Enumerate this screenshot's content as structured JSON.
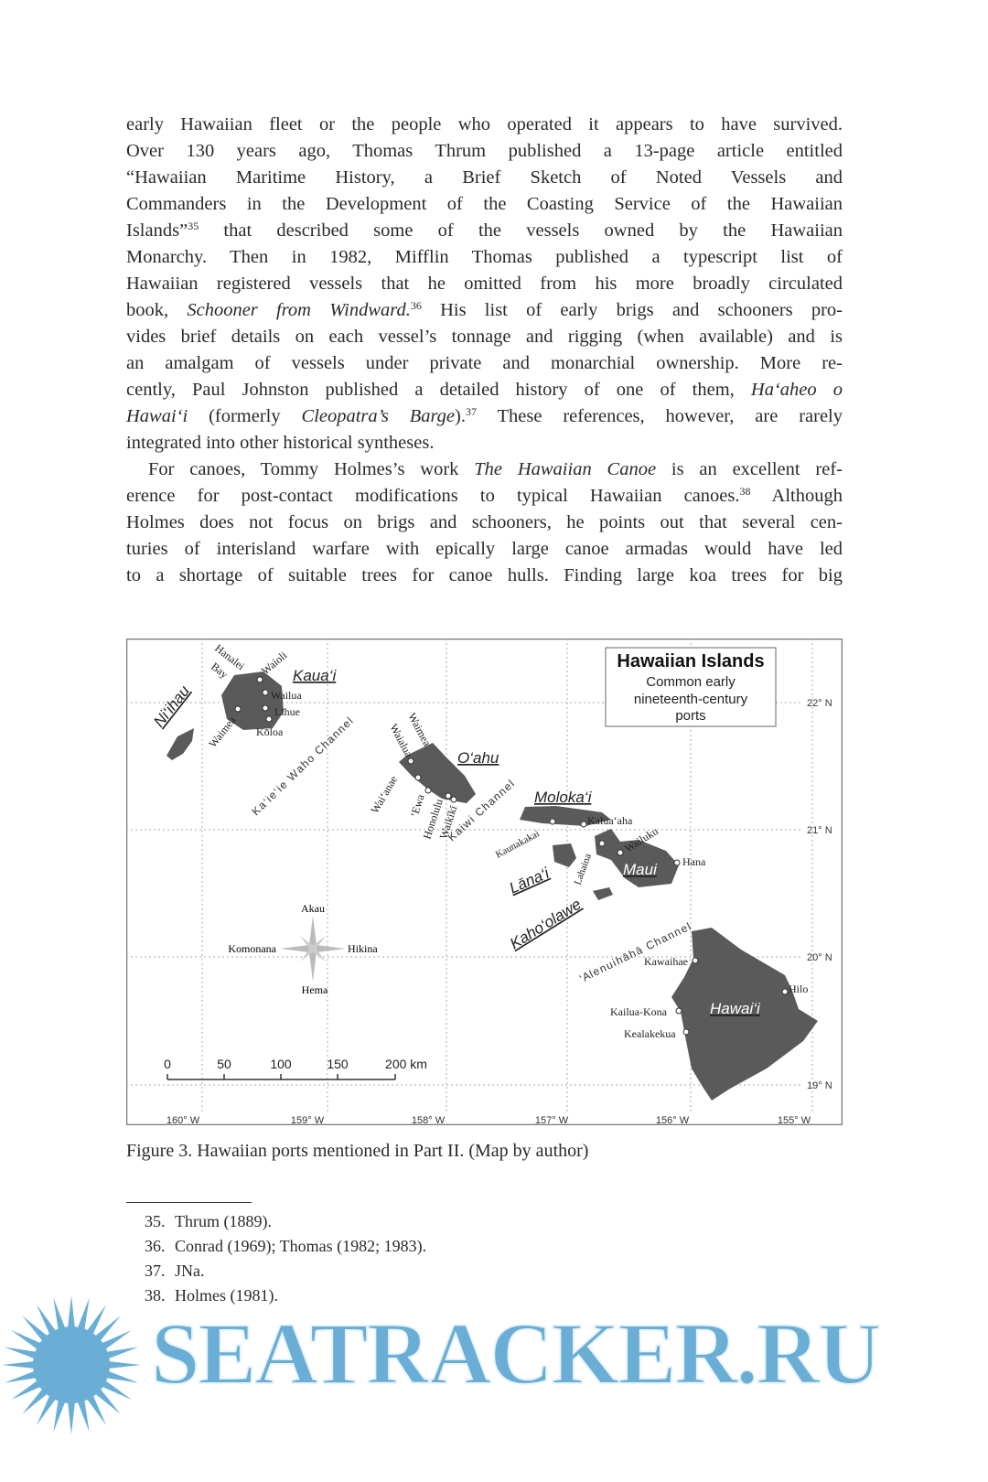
{
  "body_lines": [
    [
      {
        "t": "early Hawaiian fleet or the people who operated it appears to have survived."
      }
    ],
    [
      {
        "t": "Over 130 years ago, Thomas Thrum published a 13-page article entitled"
      }
    ],
    [
      {
        "t": "“Hawaiian Maritime History, a Brief Sketch of Noted Vessels and"
      }
    ],
    [
      {
        "t": "Commanders in the Development of the Coasting Service of the Hawaiian"
      }
    ],
    [
      {
        "t": "Islands”"
      },
      {
        "t": "35",
        "sup": true
      },
      {
        "t": " that described some of the vessels owned by the Hawaiian"
      }
    ],
    [
      {
        "t": "Monarchy. Then in 1982, Mifflin Thomas published a typescript list of"
      }
    ],
    [
      {
        "t": "Hawaiian registered vessels that he omitted from his more broadly circulated"
      }
    ],
    [
      {
        "t": "book, "
      },
      {
        "t": "Schooner from Windward.",
        "i": true
      },
      {
        "t": "36",
        "sup": true
      },
      {
        "t": " His list of early brigs and schooners pro-"
      }
    ],
    [
      {
        "t": "vides brief details on each vessel’s tonnage and rigging (when available) and is"
      }
    ],
    [
      {
        "t": "an amalgam of vessels under private and monarchial ownership. More re-"
      }
    ],
    [
      {
        "t": "cently, Paul Johnston published a detailed history of one of them, "
      },
      {
        "t": "Ha‘aheo o",
        "i": true
      }
    ],
    [
      {
        "t": "Hawai‘i",
        "i": true
      },
      {
        "t": " (formerly "
      },
      {
        "t": "Cleopatra’s Barge",
        "i": true
      },
      {
        "t": ")."
      },
      {
        "t": "37",
        "sup": true
      },
      {
        "t": " These references, however, are rarely"
      }
    ],
    [
      {
        "t": "integrated into other historical syntheses."
      }
    ],
    [
      {
        "t": "For canoes, Tommy Holmes’s work "
      },
      {
        "t": "The Hawaiian Canoe",
        "i": true
      },
      {
        "t": " is an excellent ref-"
      }
    ],
    [
      {
        "t": "erence for post-contact modifications to typical Hawaiian canoes."
      },
      {
        "t": "38",
        "sup": true
      },
      {
        "t": " Although"
      }
    ],
    [
      {
        "t": "Holmes does not focus on brigs and schooners, he points out that several cen-"
      }
    ],
    [
      {
        "t": "turies of interisland warfare with epically large canoe armadas would have led"
      }
    ],
    [
      {
        "t": "to a shortage of suitable trees for canoe hulls. Finding large koa trees for big"
      }
    ]
  ],
  "map": {
    "legend": {
      "title": "Hawaiian Islands",
      "line1": "Common early",
      "line2": "nineteenth-century",
      "line3": "ports"
    },
    "islands": {
      "niihau": "Ni‘ihau",
      "kauai": "Kaua‘i",
      "oahu": "O‘ahu",
      "molokai": "Moloka‘i",
      "lanai": "Lāna‘i",
      "maui": "Maui",
      "kahoolawe": "Kaho‘olawe",
      "hawaii": "Hawai‘i"
    },
    "ports": {
      "hanalei1": "Hanalei",
      "hanalei2": "Bay",
      "waioli": "Waioli",
      "wailua": "Wailua",
      "lihue": "Līhue",
      "koloa": "Kōloa",
      "waimea_k": "Waimea",
      "waimea_o": "Waimea",
      "waialua": "Waialua",
      "waianae": "Wai‘anae",
      "ewa": "‘Ewa",
      "honolulu": "Honolulu",
      "waikiki": "Waikīkī",
      "kaunakakai": "Kaunakakai",
      "kaluaaha": "Kalua‘aha",
      "lahaina": "Lahaina",
      "wailuku": "Wailuku",
      "hana": "Hana",
      "kawaihae": "Kawaihae",
      "hilo": "Hilo",
      "kailua": "Kailua-Kona",
      "kealakekua": "Kealakekua"
    },
    "channels": {
      "kaieiewaho": "K a ‘ i e ‘ i e   W a h o   C h a n n e l",
      "kaiwi": "K a i w i   C h a n n e l",
      "alenuihaha": "‘ A l e n u i h ā h ā   C h a n n e l"
    },
    "compass": {
      "n": "Akau",
      "s": "Hema",
      "e": "Hikina",
      "w": "Komonana"
    },
    "scale": {
      "t0": "0",
      "t1": "50",
      "t2": "100",
      "t3": "150",
      "t4": "200 km"
    },
    "lat": [
      "22° N",
      "21° N",
      "20° N",
      "19° N"
    ],
    "lon": [
      "160° W",
      "159° W",
      "158° W",
      "157° W",
      "156° W",
      "155° W"
    ],
    "land_color": "#5a5a5a"
  },
  "caption": "Figure 3. Hawaiian ports mentioned in Part II. (Map by author)",
  "footnotes": [
    {
      "num": "35.",
      "text": "Thrum (1889)."
    },
    {
      "num": "36.",
      "text": "Conrad (1969); Thomas (1982; 1983)."
    },
    {
      "num": "37.",
      "text": "JNa."
    },
    {
      "num": "38.",
      "text": "Holmes (1981)."
    }
  ],
  "watermark": {
    "text": "SEATRACKER.RU",
    "color": "#6aaed6"
  }
}
